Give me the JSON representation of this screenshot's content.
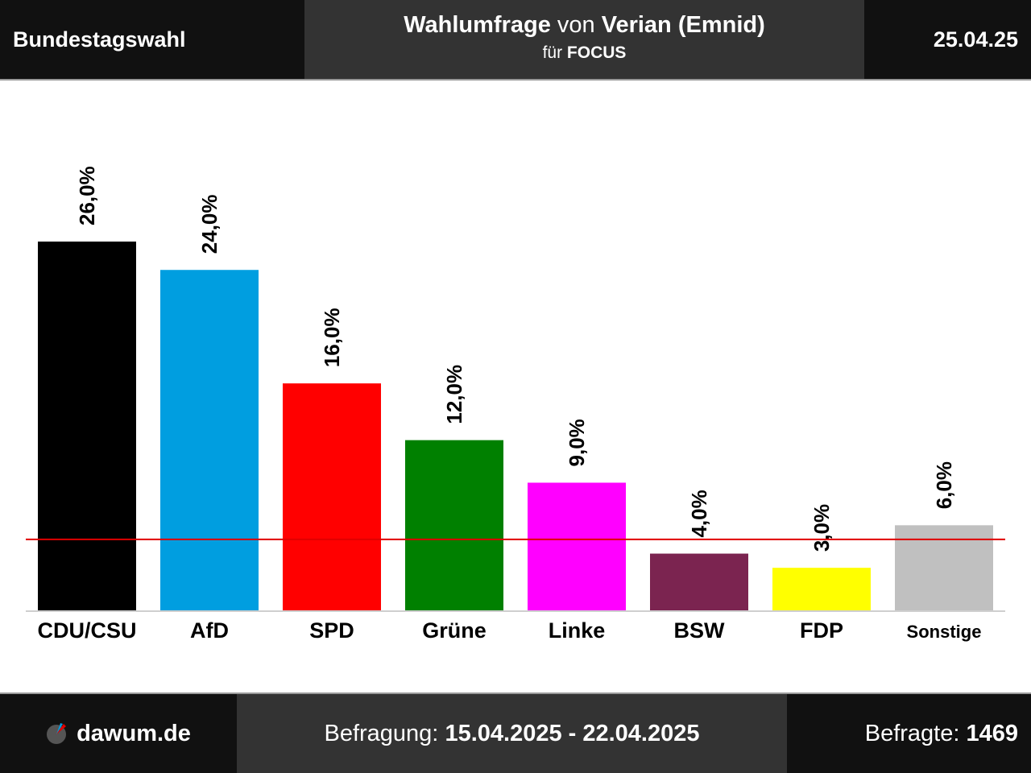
{
  "header": {
    "election": "Bundestagswahl",
    "title_bold_1": "Wahlumfrage",
    "title_normal": " von ",
    "title_bold_2": "Verian (Emnid)",
    "subtitle_normal": "für ",
    "subtitle_bold": "FOCUS",
    "date": "25.04.25"
  },
  "chart_data": {
    "type": "bar",
    "categories": [
      "CDU/CSU",
      "AfD",
      "SPD",
      "Grüne",
      "Linke",
      "BSW",
      "FDP",
      "Sonstige"
    ],
    "values": [
      26.0,
      24.0,
      16.0,
      12.0,
      9.0,
      4.0,
      3.0,
      6.0
    ],
    "value_labels": [
      "26,0%",
      "24,0%",
      "16,0%",
      "12,0%",
      "9,0%",
      "4,0%",
      "3,0%",
      "6,0%"
    ],
    "colors": [
      "#000000",
      "#009ee0",
      "#ff0000",
      "#008000",
      "#ff00ff",
      "#7b2450",
      "#ffff00",
      "#c0c0c0"
    ],
    "threshold": 5.0,
    "threshold_color": "#e00000",
    "ylim": [
      0,
      26.0
    ],
    "xlabel": "",
    "ylabel": "",
    "grid": false
  },
  "footer": {
    "site": "dawum.de",
    "survey_label": "Befragung: ",
    "survey_period": "15.04.2025 - 22.04.2025",
    "respondents_label": "Befragte: ",
    "respondents": "1469"
  }
}
